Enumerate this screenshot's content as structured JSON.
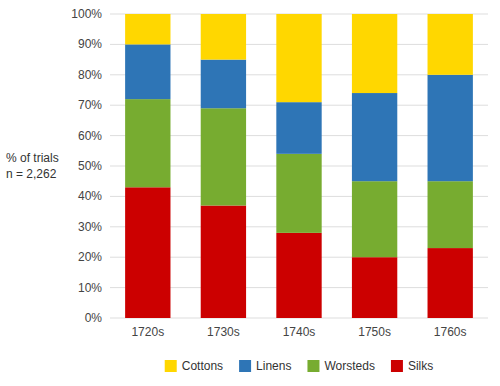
{
  "chart_data": {
    "type": "bar",
    "stacked": true,
    "y_label": [
      "% of trials",
      "n = 2,262"
    ],
    "categories": [
      "1720s",
      "1730s",
      "1740s",
      "1750s",
      "1760s"
    ],
    "series": [
      {
        "name": "Silks",
        "color": "#CC0000",
        "values": [
          43,
          37,
          28,
          20,
          23
        ]
      },
      {
        "name": "Worsteds",
        "color": "#77AC30",
        "values": [
          29,
          32,
          26,
          25,
          22
        ]
      },
      {
        "name": "Linens",
        "color": "#2E75B6",
        "values": [
          18,
          16,
          17,
          29,
          35
        ]
      },
      {
        "name": "Cottons",
        "color": "#FFD700",
        "values": [
          10,
          15,
          29,
          26,
          20
        ]
      }
    ],
    "ylim": [
      0,
      100
    ],
    "yticks": [
      {
        "value": 0,
        "label": "0%"
      },
      {
        "value": 10,
        "label": "10%"
      },
      {
        "value": 20,
        "label": "20%"
      },
      {
        "value": 30,
        "label": "30%"
      },
      {
        "value": 40,
        "label": "40%"
      },
      {
        "value": 50,
        "label": "50%"
      },
      {
        "value": 60,
        "label": "60%"
      },
      {
        "value": 70,
        "label": "70%"
      },
      {
        "value": 80,
        "label": "80%"
      },
      {
        "value": 90,
        "label": "90%"
      },
      {
        "value": 100,
        "label": "100%"
      }
    ],
    "grid": true,
    "legend": "bottom"
  }
}
